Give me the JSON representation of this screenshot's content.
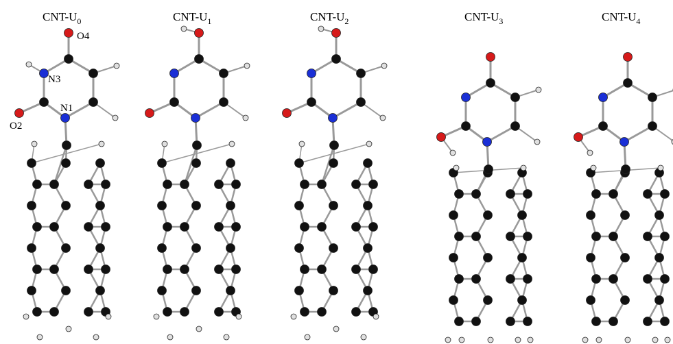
{
  "panels": [
    {
      "title": "CNT-U",
      "subscript": "0"
    },
    {
      "title": "CNT-U",
      "subscript": "1"
    },
    {
      "title": "CNT-U",
      "subscript": "2"
    },
    {
      "title": "CNT-U",
      "subscript": "3"
    },
    {
      "title": "CNT-U",
      "subscript": "4"
    }
  ],
  "atom_labels": [
    "O4",
    "N3",
    "N1",
    "O2"
  ]
}
